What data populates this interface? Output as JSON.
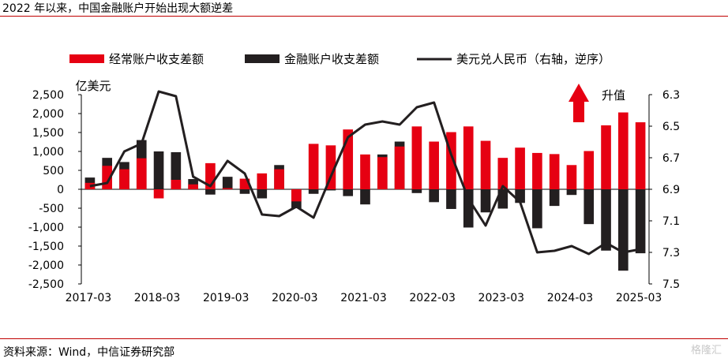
{
  "header": {
    "title": "2022 年以来，中国金融账户开始出现大额逆差"
  },
  "footer": {
    "source": "资料来源：Wind，中信证券研究部",
    "watermark": "格隆汇"
  },
  "colors": {
    "red": "#e60012",
    "black": "#231f20",
    "accent": "#c00000"
  },
  "chart_data": {
    "type": "bar",
    "title": "2022 年以来，中国金融账户开始出现大额逆差",
    "ylabel_left": "亿美元",
    "annotation": "升值",
    "legend_position": "top",
    "left_axis": {
      "min": -2500,
      "max": 2500,
      "ticks": [
        "2,500",
        "2,000",
        "1,500",
        "1,000",
        "500",
        "0",
        "-500",
        "-1,000",
        "-1,500",
        "-2,000",
        "-2,500"
      ]
    },
    "right_axis": {
      "min": 6.3,
      "max": 7.5,
      "inverted": true,
      "ticks": [
        "6.3",
        "6.5",
        "6.7",
        "6.9",
        "7.1",
        "7.3",
        "7.5"
      ]
    },
    "x_tick_labels": [
      "2017-03",
      "2018-03",
      "2019-03",
      "2020-03",
      "2021-03",
      "2022-03",
      "2023-03",
      "2024-03",
      "2025-03"
    ],
    "categories": [
      "2017-Q1",
      "2017-Q2",
      "2017-Q3",
      "2017-Q4",
      "2018-Q1",
      "2018-Q2",
      "2018-Q3",
      "2018-Q4",
      "2019-Q1",
      "2019-Q2",
      "2019-Q3",
      "2019-Q4",
      "2020-Q1",
      "2020-Q2",
      "2020-Q3",
      "2020-Q4",
      "2021-Q1",
      "2021-Q2",
      "2021-Q3",
      "2021-Q4",
      "2022-Q1",
      "2022-Q2",
      "2022-Q3",
      "2022-Q4",
      "2023-Q1",
      "2023-Q2",
      "2023-Q3",
      "2023-Q4",
      "2024-Q1",
      "2024-Q2",
      "2024-Q3",
      "2024-Q4",
      "2025-Q1"
    ],
    "series": [
      {
        "name": "经常账户收支差额",
        "type": "bar",
        "axis": "left",
        "values": [
          170,
          620,
          530,
          820,
          -240,
          250,
          130,
          690,
          30,
          280,
          420,
          530,
          -320,
          1200,
          1160,
          1580,
          920,
          850,
          1130,
          1660,
          1260,
          1510,
          1660,
          1280,
          830,
          1100,
          960,
          930,
          640,
          1010,
          1690,
          2030,
          1770
        ]
      },
      {
        "name": "金融账户收支差额",
        "type": "bar",
        "axis": "left",
        "values": [
          310,
          830,
          720,
          1300,
          1000,
          980,
          270,
          -140,
          330,
          -120,
          -240,
          640,
          -500,
          -120,
          -30,
          -180,
          -400,
          920,
          1260,
          -100,
          -340,
          -520,
          -1010,
          -610,
          -510,
          -360,
          -1030,
          -440,
          -150,
          -920,
          -1620,
          -2150,
          -1690
        ]
      },
      {
        "name": "美元兑人民币（右轴，逆序）",
        "type": "line",
        "axis": "right",
        "values": [
          6.88,
          6.86,
          6.66,
          6.61,
          6.28,
          6.31,
          6.82,
          6.88,
          6.72,
          6.8,
          7.06,
          7.07,
          7.01,
          7.08,
          6.82,
          6.57,
          6.49,
          6.47,
          6.49,
          6.38,
          6.35,
          6.68,
          6.96,
          7.13,
          6.88,
          6.98,
          7.3,
          7.29,
          7.26,
          7.31,
          7.24,
          7.3,
          7.28
        ]
      }
    ]
  }
}
